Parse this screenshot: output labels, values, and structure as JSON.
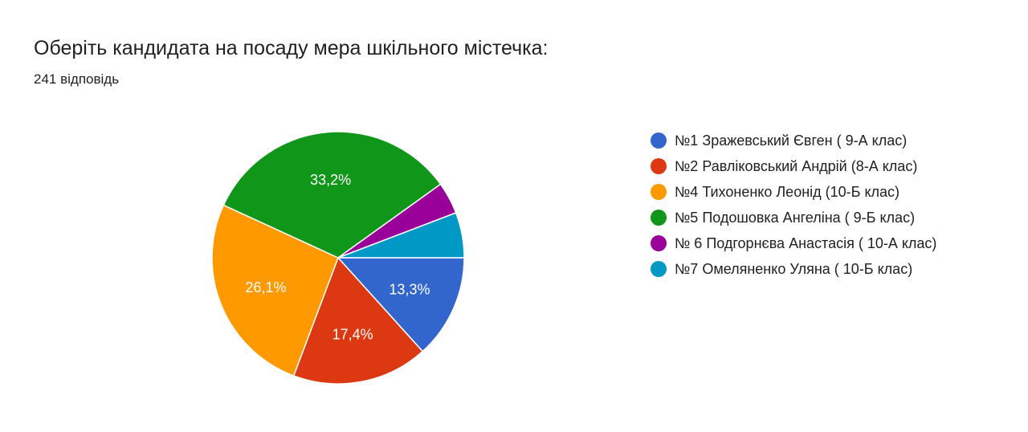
{
  "header": {
    "title": "Оберіть кандидата на посаду мера шкільного містечка:",
    "responses": "241 відповідь"
  },
  "chart_data": {
    "type": "pie",
    "title": "Оберіть кандидата на посаду мера шкільного містечка:",
    "legend_position": "right",
    "slices": [
      {
        "label": "№1 Зражевський Євген ( 9-А клас)",
        "value": 13.3,
        "display": "13,3%",
        "color": "#3366cc"
      },
      {
        "label": "№2 Равліковський Андрій (8-А клас)",
        "value": 17.4,
        "display": "17,4%",
        "color": "#dc3912"
      },
      {
        "label": "№4 Тихоненко Леонід (10-Б клас)",
        "value": 26.1,
        "display": "26,1%",
        "color": "#ff9900"
      },
      {
        "label": "№5 Подошовка Ангеліна ( 9-Б клас)",
        "value": 33.2,
        "display": "33,2%",
        "color": "#109618"
      },
      {
        "label": "№ 6 Подгорнєва Анастасія ( 10-А клас)",
        "value": 4.1,
        "display": "",
        "color": "#990099"
      },
      {
        "label": "№7 Омеляненко Уляна ( 10-Б клас)",
        "value": 5.8,
        "display": "",
        "color": "#0099c6"
      }
    ]
  }
}
